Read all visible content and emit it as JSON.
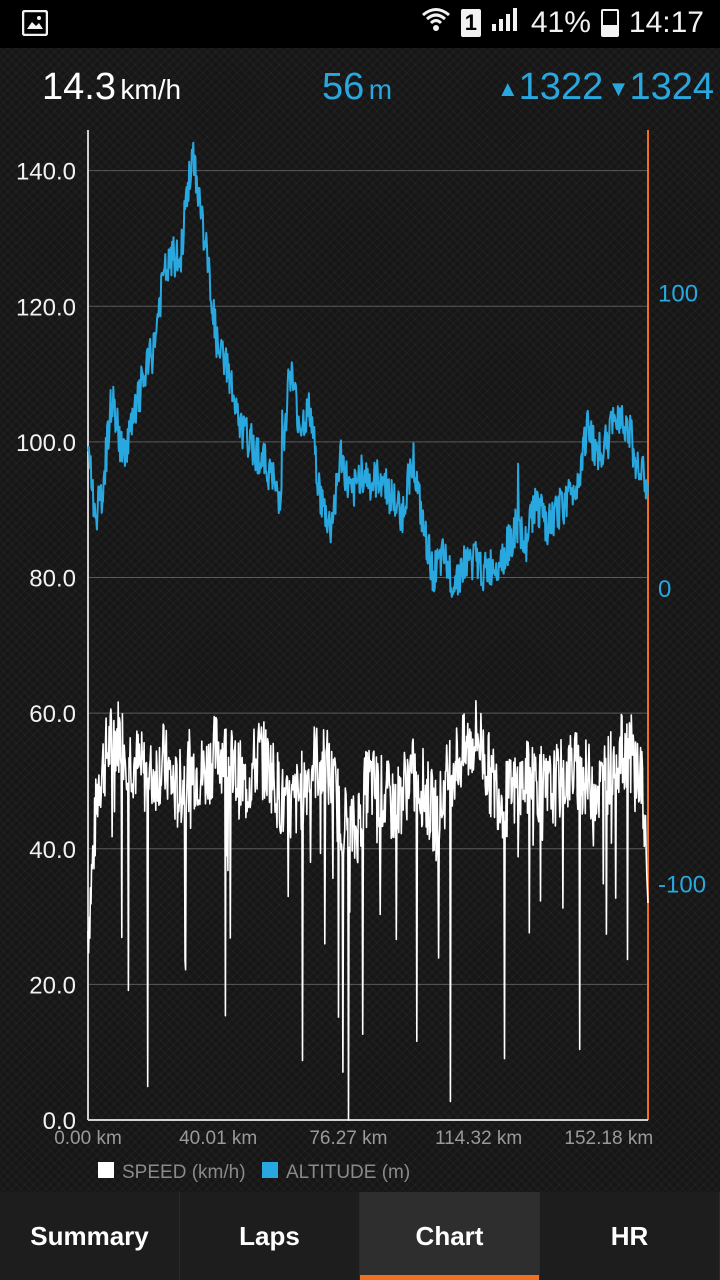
{
  "status_bar": {
    "battery": "41%",
    "time": "14:17",
    "sim": "1"
  },
  "stats": {
    "speed_value": "14.3",
    "speed_unit": "km/h",
    "altitude_value": "56",
    "altitude_unit": "m",
    "ascent": "1322",
    "descent": "1324"
  },
  "chart_data": {
    "type": "line",
    "x_tick_labels": [
      "0.00 km",
      "40.01 km",
      "76.27 km",
      "114.32 km",
      "152.18 km"
    ],
    "y_left_ticks": [
      "0.0",
      "20.0",
      "40.0",
      "60.0",
      "80.0",
      "100.0",
      "120.0",
      "140.0"
    ],
    "y_left_range": [
      0,
      146
    ],
    "y_right_ticks": [
      "-100",
      "0",
      "100"
    ],
    "y_right_range": [
      -180,
      155
    ],
    "x_range_km": [
      0,
      163.8
    ],
    "legend_position": "bottom-left",
    "grid": true,
    "series": [
      {
        "name": "SPEED (km/h)",
        "axis": "left",
        "color": "#ffffff",
        "x_km": [
          0,
          3,
          6,
          9,
          12,
          15,
          18,
          22,
          26,
          30,
          34,
          38,
          42,
          46,
          50,
          54,
          58,
          62,
          66,
          70,
          74,
          78,
          82,
          86,
          90,
          94,
          98,
          102,
          106,
          110,
          114,
          118,
          122,
          126,
          130,
          134,
          138,
          142,
          146,
          150,
          154,
          158,
          162,
          163.8
        ],
        "values": [
          28,
          50,
          55,
          57,
          54,
          52,
          50,
          53,
          48,
          52,
          51,
          55,
          52,
          49,
          54,
          51,
          45,
          48,
          53,
          52,
          45,
          42,
          50,
          48,
          46,
          51,
          49,
          44,
          52,
          54,
          57,
          50,
          47,
          49,
          51,
          48,
          50,
          52,
          50,
          49,
          53,
          55,
          50,
          32
        ]
      },
      {
        "name": "ALTITUDE (m)",
        "axis": "right",
        "color": "#29a8e0",
        "x_km": [
          0,
          2,
          4,
          7,
          10,
          13,
          16,
          19,
          22,
          25,
          27,
          29,
          31,
          33,
          35,
          38,
          41,
          44,
          47,
          50,
          53,
          56,
          59,
          62,
          65,
          68,
          71,
          74,
          77,
          80,
          83,
          86,
          89,
          92,
          95,
          98,
          101,
          104,
          107,
          110,
          113,
          116,
          119,
          122,
          125,
          128,
          131,
          134,
          137,
          140,
          143,
          146,
          149,
          152,
          155,
          158,
          161,
          163.8
        ],
        "values": [
          50,
          25,
          30,
          65,
          45,
          55,
          70,
          80,
          105,
          112,
          110,
          135,
          145,
          128,
          110,
          80,
          75,
          55,
          50,
          45,
          40,
          30,
          75,
          55,
          60,
          30,
          20,
          45,
          30,
          40,
          35,
          38,
          30,
          25,
          45,
          20,
          5,
          10,
          2,
          8,
          10,
          5,
          8,
          12,
          20,
          15,
          30,
          20,
          25,
          30,
          35,
          55,
          45,
          50,
          60,
          55,
          40,
          35
        ]
      }
    ]
  }
}
